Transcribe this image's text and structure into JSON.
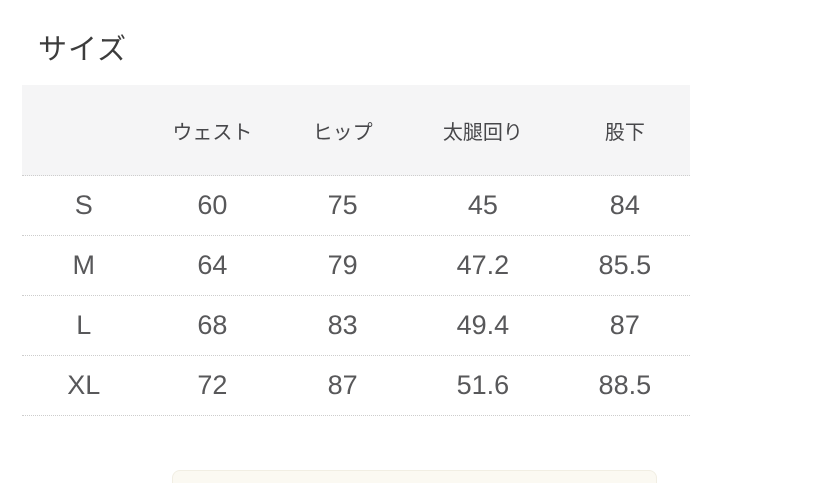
{
  "page": {
    "title": "サイズ"
  },
  "size_table": {
    "columns": [
      "",
      "ウェスト",
      "ヒップ",
      "太腿回り",
      "股下"
    ],
    "rows": [
      {
        "size": "S",
        "values": [
          "60",
          "75",
          "45",
          "84"
        ]
      },
      {
        "size": "M",
        "values": [
          "64",
          "79",
          "47.2",
          "85.5"
        ]
      },
      {
        "size": "L",
        "values": [
          "68",
          "83",
          "49.4",
          "87"
        ]
      },
      {
        "size": "XL",
        "values": [
          "72",
          "87",
          "51.6",
          "88.5"
        ]
      }
    ]
  },
  "colors": {
    "header_background": "#f5f5f6",
    "row_border_dotted": "#cdcdcd",
    "title_text": "#3c3c3c",
    "cell_text": "#58585a",
    "next_section_bar": "#fbf9f2"
  }
}
